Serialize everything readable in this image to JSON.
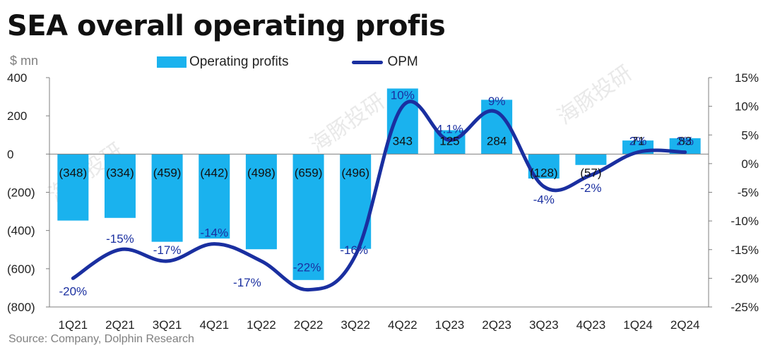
{
  "header": {
    "title": "SEA overall operating profis",
    "unit": "$ mn"
  },
  "legend": {
    "bar_label": "Operating profits",
    "line_label": "OPM"
  },
  "footer": {
    "source": "Source: Company, Dolphin Research"
  },
  "colors": {
    "bar": "#1ab2ee",
    "line": "#1a2fa0",
    "axis": "#7f7f7f"
  },
  "chart_data": {
    "type": "bar",
    "title": "SEA overall operating profis",
    "ylabel": "$ mn",
    "categories": [
      "1Q21",
      "2Q21",
      "3Q21",
      "4Q21",
      "1Q22",
      "2Q22",
      "3Q22",
      "4Q22",
      "1Q23",
      "2Q23",
      "3Q23",
      "4Q23",
      "1Q24",
      "2Q24"
    ],
    "series": [
      {
        "name": "Operating profits",
        "type": "bar",
        "axis": "left",
        "values": [
          -348,
          -334,
          -459,
          -442,
          -498,
          -659,
          -496,
          343,
          125,
          284,
          -128,
          -57,
          71,
          83
        ],
        "labels": [
          "(348)",
          "(334)",
          "(459)",
          "(442)",
          "(498)",
          "(659)",
          "(496)",
          "343",
          "125",
          "284",
          "(128)",
          "(57)",
          "71",
          "83"
        ]
      },
      {
        "name": "OPM",
        "type": "line",
        "axis": "right",
        "values": [
          -20,
          -15,
          -17,
          -14,
          -17,
          -22,
          -16,
          10,
          4.1,
          9,
          -4,
          -2,
          2,
          2
        ],
        "labels": [
          "-20%",
          "-15%",
          "-17%",
          "-14%",
          "-17%",
          "-22%",
          "-16%",
          "10%",
          "4.1%",
          "9%",
          "-4%",
          "-2%",
          "2%",
          "2%"
        ]
      }
    ],
    "ylim_left": [
      -800,
      400
    ],
    "yticks_left": [
      "400",
      "200",
      "0",
      "(200)",
      "(400)",
      "(600)",
      "(800)"
    ],
    "ylim_right": [
      -25,
      15
    ],
    "yticks_right": [
      "15%",
      "10%",
      "5%",
      "0%",
      "-5%",
      "-10%",
      "-15%",
      "-20%",
      "-25%"
    ],
    "grid": false,
    "legend_position": "top"
  }
}
